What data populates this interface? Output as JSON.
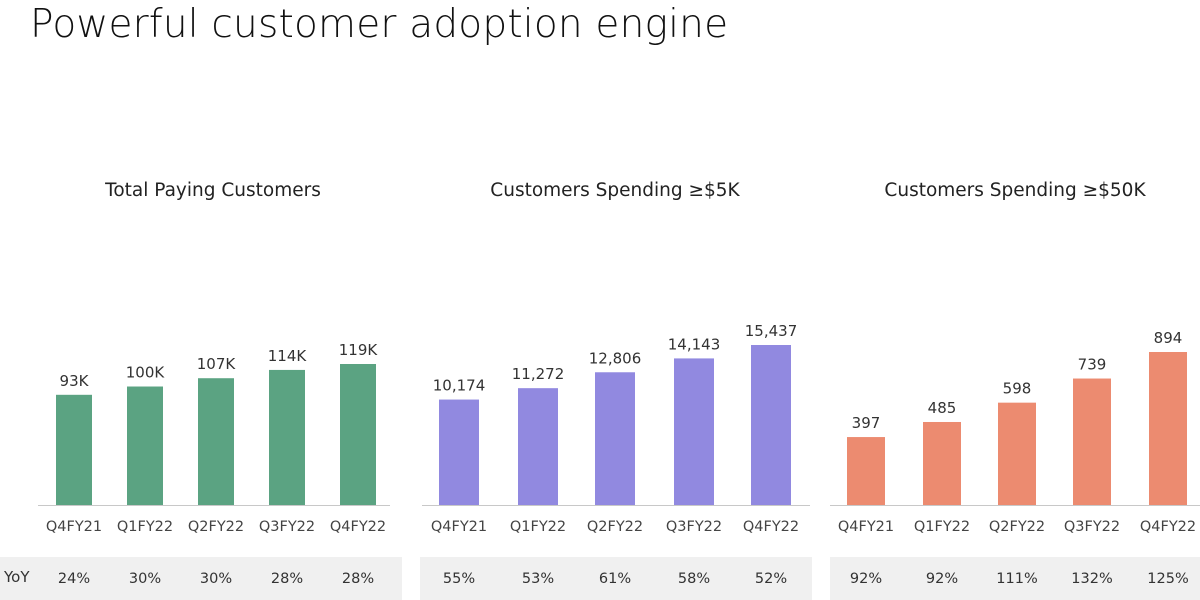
{
  "page": {
    "title": "Powerful customer adoption engine",
    "yoy_label": "YoY"
  },
  "colors": {
    "green": "#5ba382",
    "purple": "#9189e0",
    "orange": "#ec8b70",
    "axis": "#c8c8c8",
    "band": "#f0f0f0"
  },
  "chart_data": [
    {
      "type": "bar",
      "title": "Total Paying Customers",
      "categories": [
        "Q4FY21",
        "Q1FY22",
        "Q2FY22",
        "Q3FY22",
        "Q4FY22"
      ],
      "values": [
        93,
        100,
        107,
        114,
        119
      ],
      "value_labels": [
        "93K",
        "100K",
        "107K",
        "114K",
        "119K"
      ],
      "unit": "K",
      "yoy": [
        "24%",
        "30%",
        "30%",
        "28%",
        "28%"
      ],
      "xlabel": "",
      "ylabel": "",
      "ylim": [
        0,
        124
      ],
      "color": "#5ba382"
    },
    {
      "type": "bar",
      "title": "Customers Spending ≥$5K",
      "categories": [
        "Q4FY21",
        "Q1FY22",
        "Q2FY22",
        "Q3FY22",
        "Q4FY22"
      ],
      "values": [
        10174,
        11272,
        12806,
        14143,
        15437
      ],
      "value_labels": [
        "10,174",
        "11,272",
        "12,806",
        "14,143",
        "15,437"
      ],
      "yoy": [
        "55%",
        "53%",
        "61%",
        "58%",
        "52%"
      ],
      "xlabel": "",
      "ylabel": "",
      "ylim": [
        0,
        15437
      ],
      "color": "#9189e0"
    },
    {
      "type": "bar",
      "title": "Customers Spending ≥$50K",
      "categories": [
        "Q4FY21",
        "Q1FY22",
        "Q2FY22",
        "Q3FY22",
        "Q4FY22"
      ],
      "values": [
        397,
        485,
        598,
        739,
        894
      ],
      "value_labels": [
        "397",
        "485",
        "598",
        "739",
        "894"
      ],
      "yoy": [
        "92%",
        "92%",
        "111%",
        "132%",
        "125%"
      ],
      "xlabel": "",
      "ylabel": "",
      "ylim": [
        0,
        1000
      ],
      "color": "#ec8b70"
    }
  ]
}
